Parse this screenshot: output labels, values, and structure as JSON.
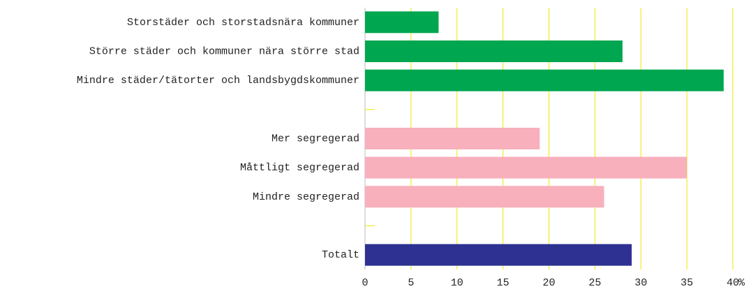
{
  "chart_data": {
    "type": "bar",
    "orientation": "horizontal",
    "categories": [
      "Storstäder och storstadsnära kommuner",
      "Större städer och kommuner nära större stad",
      "Mindre städer/tätorter och landsbygdskommuner",
      null,
      "Mer segregerad",
      "Måttligt segregerad",
      "Mindre segregerad",
      null,
      "Totalt"
    ],
    "values": [
      8,
      28,
      39,
      null,
      19,
      35,
      26,
      null,
      29
    ],
    "colors": [
      "#00a650",
      "#00a650",
      "#00a650",
      null,
      "#f7b0bc",
      "#f7b0bc",
      "#f7b0bc",
      null,
      "#2e3192"
    ],
    "xlim": [
      0,
      40
    ],
    "xticks": [
      0,
      5,
      10,
      15,
      20,
      25,
      30,
      35,
      40
    ],
    "x_unit": "%",
    "grid": true,
    "grid_color": "#f0e500"
  }
}
